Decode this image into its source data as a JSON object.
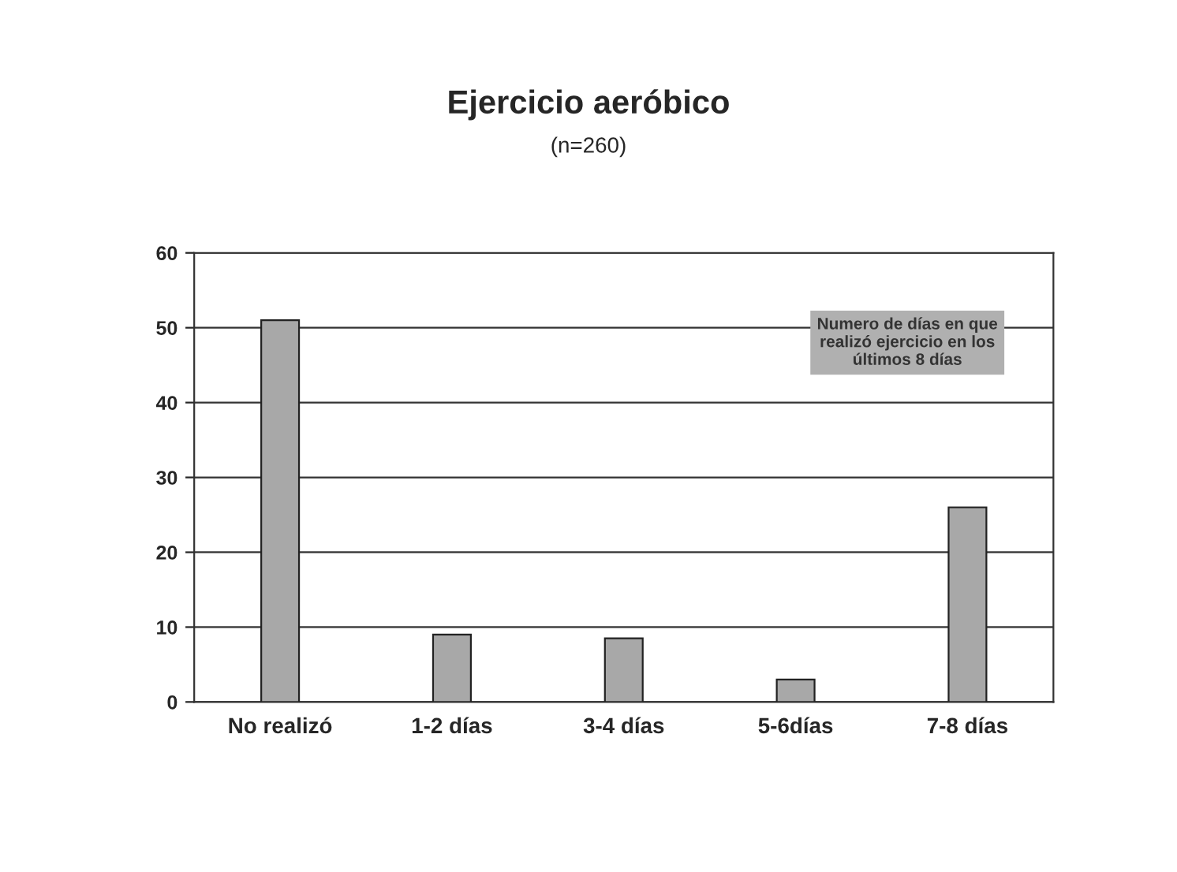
{
  "chart_data": {
    "type": "bar",
    "title": "Ejercicio aeróbico",
    "subtitle": "(n=260)",
    "categories": [
      "No realizó",
      "1-2 días",
      "3-4 días",
      "5-6días",
      "7-8 días"
    ],
    "values": [
      51,
      9,
      8.5,
      3,
      26
    ],
    "color": "#a8a8a8",
    "ylim": [
      0,
      60
    ],
    "yticks": [
      0,
      10,
      20,
      30,
      40,
      50,
      60
    ],
    "grid": "y",
    "annotations": [
      "Numero de días en que\nrealizó ejercicio en los\núltimos 8 días"
    ]
  }
}
